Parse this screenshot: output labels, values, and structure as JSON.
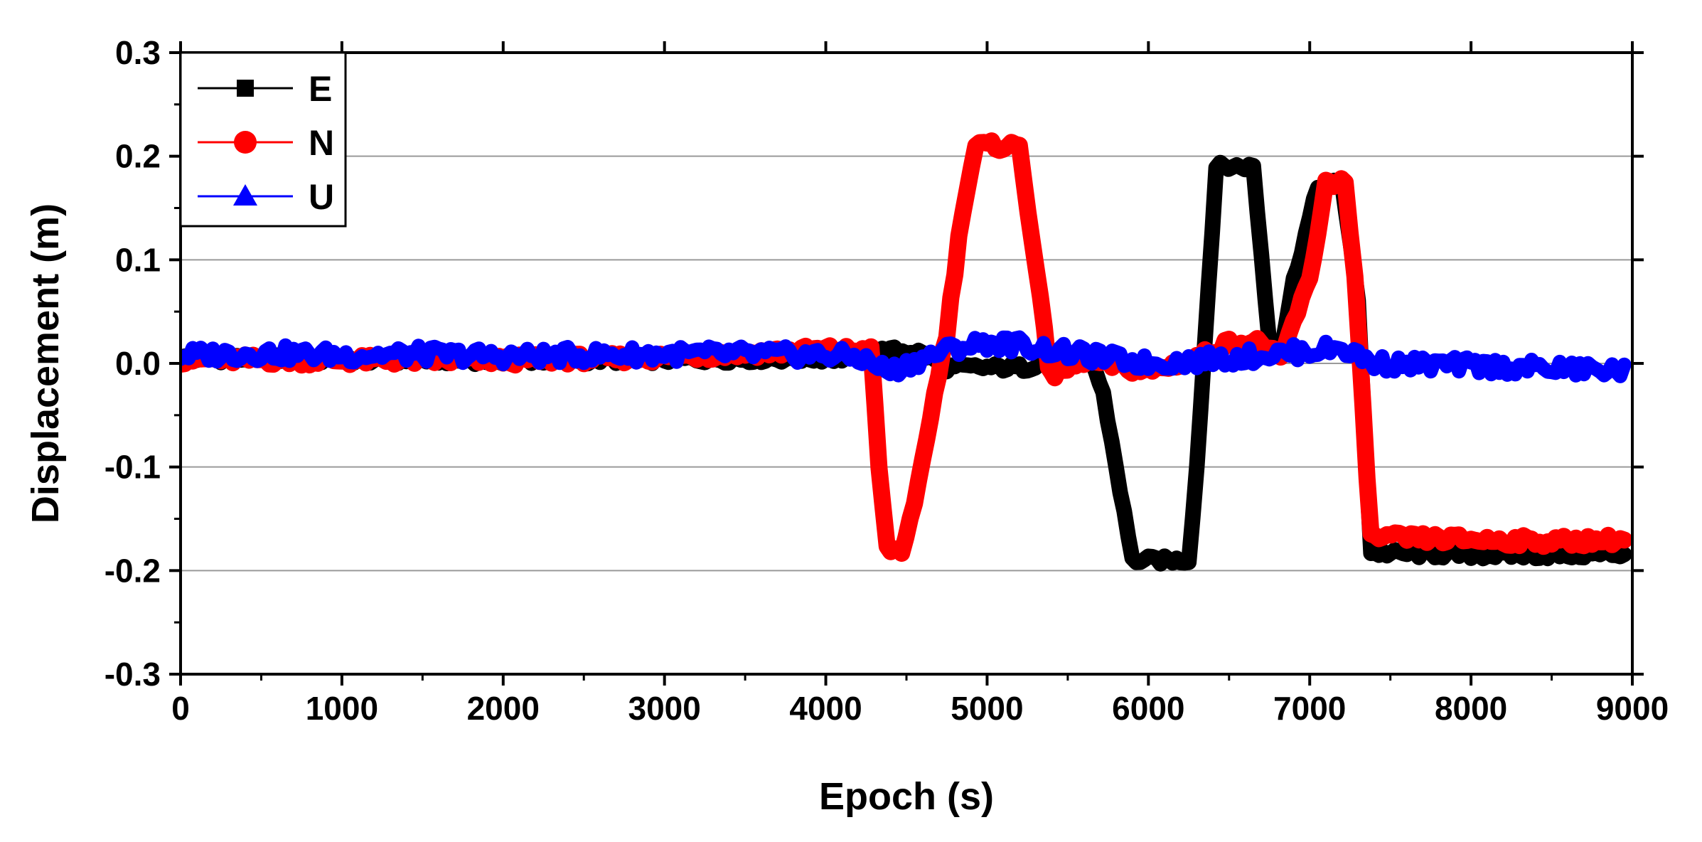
{
  "chart_data": {
    "type": "line",
    "title": "",
    "xlabel": "Epoch (s)",
    "ylabel": "Displacement (m)",
    "xlim": [
      0,
      9000
    ],
    "ylim": [
      -0.3,
      0.3
    ],
    "x_ticks": [
      0,
      1000,
      2000,
      3000,
      4000,
      5000,
      6000,
      7000,
      8000,
      9000
    ],
    "x_tick_labels": [
      "0",
      "1000",
      "2000",
      "3000",
      "4000",
      "5000",
      "6000",
      "7000",
      "8000",
      "9000"
    ],
    "y_ticks": [
      -0.3,
      -0.2,
      -0.1,
      0.0,
      0.1,
      0.2,
      0.3
    ],
    "y_tick_labels": [
      "-0.3",
      "-0.2",
      "-0.1",
      "0.0",
      "0.1",
      "0.2",
      "0.3"
    ],
    "grid": "horizontal",
    "legend_position": "top-left",
    "series": [
      {
        "name": "E",
        "color": "#000000",
        "marker": "square",
        "points": [
          [
            0,
            0.005
          ],
          [
            1000,
            0.004
          ],
          [
            2000,
            0.003
          ],
          [
            3000,
            0.004
          ],
          [
            4000,
            0.005
          ],
          [
            4250,
            0.005
          ],
          [
            4300,
            0.012
          ],
          [
            4550,
            0.012
          ],
          [
            4650,
            0.006
          ],
          [
            4750,
            -0.004
          ],
          [
            5250,
            -0.004
          ],
          [
            5350,
            0.003
          ],
          [
            5650,
            0.003
          ],
          [
            5720,
            -0.03
          ],
          [
            5800,
            -0.1
          ],
          [
            5900,
            -0.19
          ],
          [
            6250,
            -0.19
          ],
          [
            6300,
            -0.1
          ],
          [
            6420,
            0.19
          ],
          [
            6650,
            0.19
          ],
          [
            6750,
            0.02
          ],
          [
            6830,
            0.02
          ],
          [
            6900,
            0.08
          ],
          [
            7050,
            0.17
          ],
          [
            7200,
            0.175
          ],
          [
            7300,
            0.06
          ],
          [
            7380,
            -0.183
          ],
          [
            8000,
            -0.185
          ],
          [
            8500,
            -0.185
          ],
          [
            8950,
            -0.184
          ]
        ]
      },
      {
        "name": "N",
        "color": "#ff0000",
        "marker": "circle",
        "points": [
          [
            0,
            0.004
          ],
          [
            1000,
            0.003
          ],
          [
            2000,
            0.003
          ],
          [
            3000,
            0.006
          ],
          [
            3500,
            0.01
          ],
          [
            4000,
            0.013
          ],
          [
            4280,
            0.012
          ],
          [
            4330,
            -0.1
          ],
          [
            4380,
            -0.18
          ],
          [
            4470,
            -0.18
          ],
          [
            4550,
            -0.14
          ],
          [
            4650,
            -0.05
          ],
          [
            4750,
            0.03
          ],
          [
            4850,
            0.15
          ],
          [
            4930,
            0.21
          ],
          [
            5200,
            0.21
          ],
          [
            5280,
            0.12
          ],
          [
            5380,
            0.0
          ],
          [
            5420,
            -0.012
          ],
          [
            5600,
            0.003
          ],
          [
            6000,
            -0.008
          ],
          [
            6300,
            0.005
          ],
          [
            6500,
            0.02
          ],
          [
            6700,
            0.02
          ],
          [
            6820,
            0.003
          ],
          [
            6900,
            0.04
          ],
          [
            7000,
            0.08
          ],
          [
            7100,
            0.175
          ],
          [
            7220,
            0.175
          ],
          [
            7280,
            0.08
          ],
          [
            7380,
            -0.168
          ],
          [
            8000,
            -0.17
          ],
          [
            8500,
            -0.172
          ],
          [
            8950,
            -0.17
          ]
        ]
      },
      {
        "name": "U",
        "color": "#0000ff",
        "marker": "triangle",
        "points": [
          [
            0,
            0.008
          ],
          [
            500,
            0.01
          ],
          [
            1000,
            0.008
          ],
          [
            1500,
            0.009
          ],
          [
            2000,
            0.007
          ],
          [
            2500,
            0.008
          ],
          [
            3000,
            0.009
          ],
          [
            3500,
            0.009
          ],
          [
            4000,
            0.008
          ],
          [
            4200,
            0.006
          ],
          [
            4400,
            -0.008
          ],
          [
            4600,
            0.005
          ],
          [
            4800,
            0.015
          ],
          [
            5000,
            0.02
          ],
          [
            5200,
            0.018
          ],
          [
            5500,
            0.01
          ],
          [
            6000,
            0.0
          ],
          [
            6500,
            0.005
          ],
          [
            7000,
            0.012
          ],
          [
            7200,
            0.015
          ],
          [
            7400,
            0.0
          ],
          [
            8000,
            -0.002
          ],
          [
            8500,
            -0.005
          ],
          [
            8950,
            -0.007
          ]
        ]
      }
    ]
  }
}
